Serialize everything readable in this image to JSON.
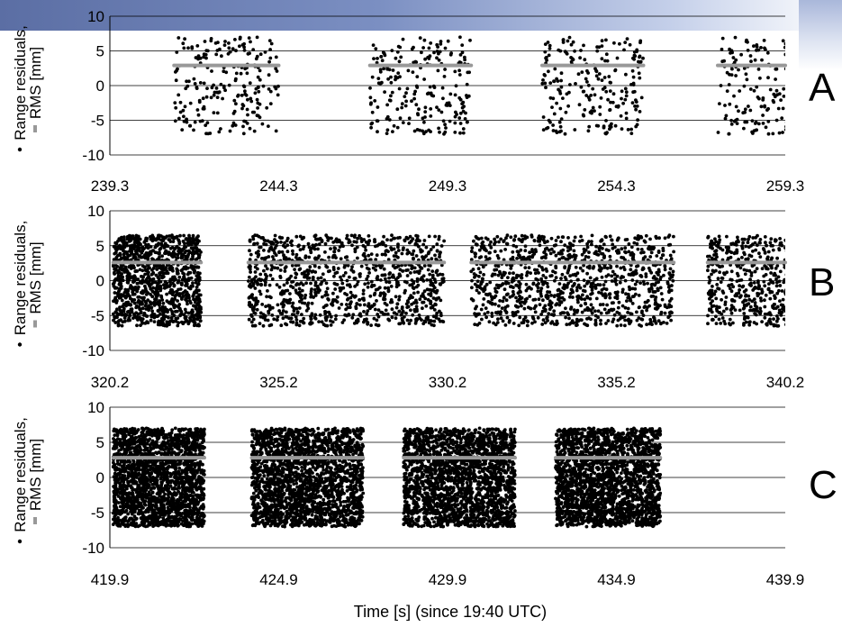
{
  "chart_data": [
    {
      "type": "scatter",
      "panel_label": "A",
      "ylabel": "Range residuals, RMS [mm]",
      "ylabel_line1": "Range residuals,",
      "ylabel_line2": "RMS [mm]",
      "ylim": [
        -10,
        10
      ],
      "yticks": [
        10,
        5,
        0,
        -5,
        -10
      ],
      "xlim": [
        239.3,
        259.3
      ],
      "xtick_labels": [
        "239.3",
        "244.3",
        "249.3",
        "254.3",
        "259.3"
      ],
      "grid": "horizontal",
      "series": [
        {
          "kind": "scatter",
          "color": "#000000",
          "bursts": [
            [
              241.2,
              244.3
            ],
            [
              247.0,
              250.0
            ],
            [
              252.1,
              255.1
            ],
            [
              257.3,
              260.4
            ]
          ],
          "y_range": [
            -7,
            7
          ],
          "points_per_burst": 220
        },
        {
          "kind": "rms-line",
          "color": "#999999",
          "segments": [
            {
              "x": [
                241.2,
                244.3
              ],
              "y": 2.9
            },
            {
              "x": [
                247.0,
                250.0
              ],
              "y": 2.9
            },
            {
              "x": [
                252.1,
                255.1
              ],
              "y": 2.9
            },
            {
              "x": [
                257.3,
                260.4
              ],
              "y": 2.9
            }
          ]
        }
      ]
    },
    {
      "type": "scatter",
      "panel_label": "B",
      "ylabel": "Range residuals, RMS [mm]",
      "ylabel_line1": "Range residuals,",
      "ylabel_line2": "RMS [mm]",
      "ylim": [
        -10,
        10
      ],
      "yticks": [
        10,
        5,
        0,
        -5,
        -10
      ],
      "xlim": [
        320.2,
        340.2
      ],
      "xtick_labels": [
        "320.2",
        "325.2",
        "330.2",
        "335.2",
        "340.2"
      ],
      "grid": "horizontal",
      "series": [
        {
          "kind": "scatter",
          "color": "#000000",
          "bursts": [
            [
              320.3,
              322.9
            ],
            [
              324.3,
              330.1
            ],
            [
              330.9,
              336.9
            ],
            [
              337.9,
              343.8
            ]
          ],
          "y_range": [
            -6.5,
            6.5
          ],
          "points_per_burst": 1100
        },
        {
          "kind": "rms-line",
          "color": "#999999",
          "segments": [
            {
              "x": [
                320.3,
                322.9
              ],
              "y": 2.6
            },
            {
              "x": [
                324.3,
                330.1
              ],
              "y": 2.6
            },
            {
              "x": [
                330.9,
                336.9
              ],
              "y": 2.6
            },
            {
              "x": [
                337.9,
                343.8
              ],
              "y": 2.6
            }
          ]
        }
      ]
    },
    {
      "type": "scatter",
      "panel_label": "C",
      "ylabel": "Range residuals, RMS [mm]",
      "ylabel_line1": "Range residuals,",
      "ylabel_line2": "RMS [mm]",
      "ylim": [
        -10,
        10
      ],
      "yticks": [
        10,
        5,
        0,
        -5,
        -10
      ],
      "xlim": [
        419.9,
        439.9
      ],
      "xtick_labels": [
        "419.9",
        "424.9",
        "429.9",
        "434.9",
        "439.9"
      ],
      "xlabel": "Time [s] (since 19:40 UTC)",
      "grid": "horizontal",
      "series": [
        {
          "kind": "scatter",
          "color": "#000000",
          "bursts": [
            [
              420.0,
              422.7
            ],
            [
              424.1,
              427.4
            ],
            [
              428.6,
              431.9
            ],
            [
              433.1,
              436.2
            ]
          ],
          "y_range": [
            -7,
            7
          ],
          "points_per_burst": 2200
        },
        {
          "kind": "rms-line",
          "color": "#999999",
          "segments": [
            {
              "x": [
                420.0,
                422.7
              ],
              "y": 2.8
            },
            {
              "x": [
                424.1,
                427.4
              ],
              "y": 2.8
            },
            {
              "x": [
                428.6,
                431.9
              ],
              "y": 2.8
            },
            {
              "x": [
                433.1,
                436.2
              ],
              "y": 2.8
            }
          ]
        }
      ]
    }
  ]
}
